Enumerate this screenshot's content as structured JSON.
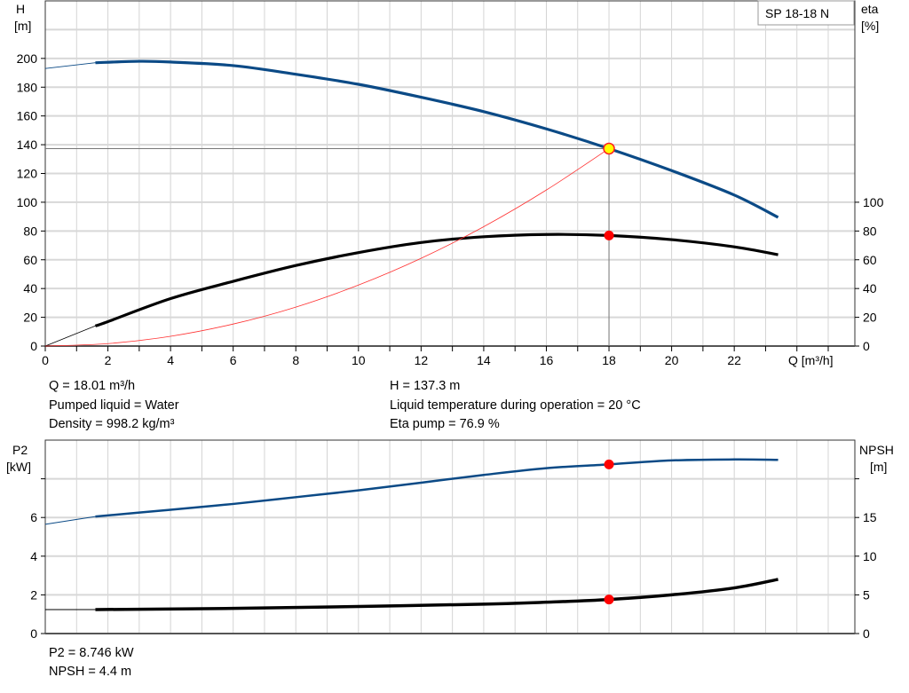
{
  "chart_data": [
    {
      "type": "line",
      "pump_label": "SP 18-18 N",
      "xlabel": "Q [m³/h]",
      "ylabel_left": [
        "H",
        "[m]"
      ],
      "ylabel_right": [
        "eta",
        "[%]"
      ],
      "xlim": [
        0,
        26
      ],
      "ylim_left": [
        0,
        240
      ],
      "ylim_right": [
        0,
        240
      ],
      "x_ticks": [
        "0",
        "2",
        "4",
        "6",
        "8",
        "10",
        "12",
        "14",
        "16",
        "18",
        "20",
        "22"
      ],
      "y_left_ticks": [
        "0",
        "20",
        "40",
        "60",
        "80",
        "100",
        "120",
        "140",
        "160",
        "180",
        "200"
      ],
      "y_right_ticks": [
        "0",
        "20",
        "40",
        "60",
        "80",
        "100"
      ],
      "grid": true,
      "series": [
        {
          "key": "H",
          "color": "#0b4a86",
          "x": [
            1.6,
            3,
            4,
            6,
            8,
            10,
            12,
            14,
            16,
            18,
            20,
            22,
            23.4
          ],
          "y": [
            197,
            198,
            197.5,
            195,
            189,
            182,
            173,
            163,
            151,
            137.3,
            122,
            105,
            89.5
          ],
          "extrapolated": {
            "x": [
              0,
              1.6
            ],
            "y": [
              193,
              197
            ]
          }
        },
        {
          "key": "eta",
          "color": "#000000",
          "x": [
            1.6,
            2,
            4,
            6,
            8,
            10,
            12,
            14,
            16,
            18,
            20,
            22,
            23.4
          ],
          "y": [
            14,
            17,
            33,
            45,
            56,
            65,
            72,
            76,
            77.6,
            76.9,
            74,
            69,
            63.5
          ],
          "extrapolated": {
            "x": [
              0,
              1.6
            ],
            "y": [
              0,
              14
            ]
          }
        },
        {
          "key": "system",
          "color": "#ff3030",
          "x": [
            0,
            2,
            4,
            6,
            8,
            10,
            12,
            14,
            16,
            18
          ],
          "y": [
            0,
            1.7,
            6.8,
            15.3,
            27.1,
            42.4,
            61,
            83,
            108.5,
            137.3
          ]
        }
      ],
      "operating_point": {
        "Q": 18,
        "H": 137.3,
        "eta": 76.9
      }
    },
    {
      "type": "line",
      "ylabel_left": [
        "P2",
        "[kW]"
      ],
      "ylabel_right": [
        "NPSH",
        "[m]"
      ],
      "xlim": [
        0,
        26
      ],
      "ylim_left": [
        0,
        10
      ],
      "ylim_right": [
        0,
        25
      ],
      "y_left_ticks": [
        "0",
        "2",
        "4",
        "6"
      ],
      "y_right_ticks": [
        "0",
        "5",
        "10",
        "15"
      ],
      "grid": true,
      "series": [
        {
          "key": "P2",
          "color": "#0b4a86",
          "x": [
            1.6,
            4,
            6,
            8,
            10,
            12,
            14,
            16,
            18,
            20,
            22,
            23.4
          ],
          "y": [
            6.05,
            6.4,
            6.7,
            7.05,
            7.4,
            7.8,
            8.2,
            8.55,
            8.746,
            8.95,
            9.0,
            8.98
          ],
          "extrapolated": {
            "x": [
              0,
              1.6
            ],
            "y": [
              5.65,
              6.05
            ]
          }
        },
        {
          "key": "NPSH",
          "color": "#000000",
          "x": [
            1.6,
            6,
            10,
            14,
            16,
            18,
            20,
            22,
            23.4
          ],
          "y": [
            3.1,
            3.25,
            3.5,
            3.8,
            4.05,
            4.4,
            5.0,
            5.9,
            7.0
          ],
          "extrapolated": {
            "x": [
              0,
              1.6
            ],
            "y": [
              3.1,
              3.1
            ]
          }
        }
      ],
      "operating_point": {
        "Q": 18,
        "P2": 8.746,
        "NPSH": 4.4
      }
    }
  ],
  "info_top": {
    "q": "Q = 18.01 m³/h",
    "liquid": "Pumped liquid = Water",
    "density": "Density = 998.2 kg/m³",
    "h": "H = 137.3 m",
    "temp": "Liquid temperature during operation = 20 °C",
    "eta": "Eta pump = 76.9 %"
  },
  "info_bottom": {
    "p2": "P2 = 8.746 kW",
    "npsh": "NPSH = 4.4 m"
  }
}
